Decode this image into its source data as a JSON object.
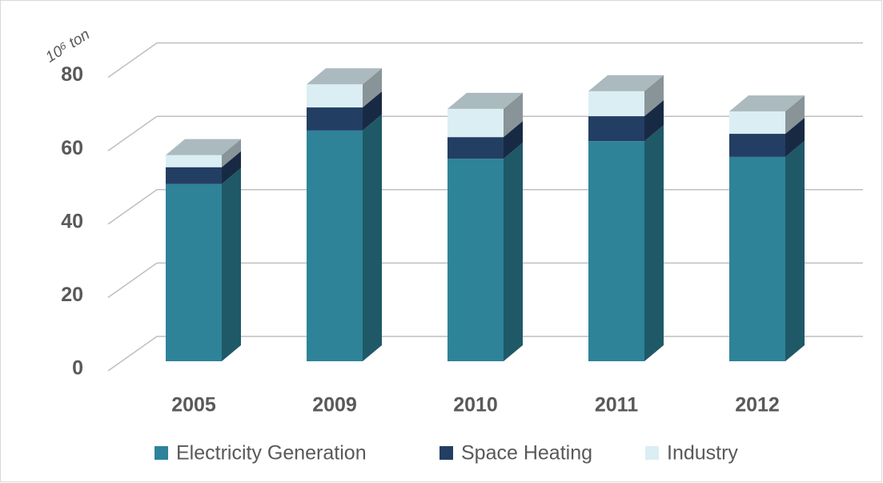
{
  "chart_data": {
    "type": "bar3d_stacked",
    "y_axis_label": "10⁶ ton",
    "categories": [
      "2005",
      "2009",
      "2010",
      "2011",
      "2012"
    ],
    "series": [
      {
        "name": "Electricity Generation",
        "color": "#2e8399",
        "values": [
          48.3,
          62.9,
          55.2,
          60.0,
          55.7
        ]
      },
      {
        "name": "Space Heating",
        "color": "#233e63",
        "values": [
          4.6,
          6.3,
          5.9,
          6.8,
          6.3
        ]
      },
      {
        "name": "Industry",
        "color": "#dbeef4",
        "values": [
          3.3,
          6.3,
          7.7,
          6.8,
          6.1
        ]
      }
    ],
    "ylim": [
      0,
      80
    ],
    "yticks": [
      0,
      20,
      40,
      60,
      80
    ],
    "grid": true,
    "legend": "bottom"
  }
}
